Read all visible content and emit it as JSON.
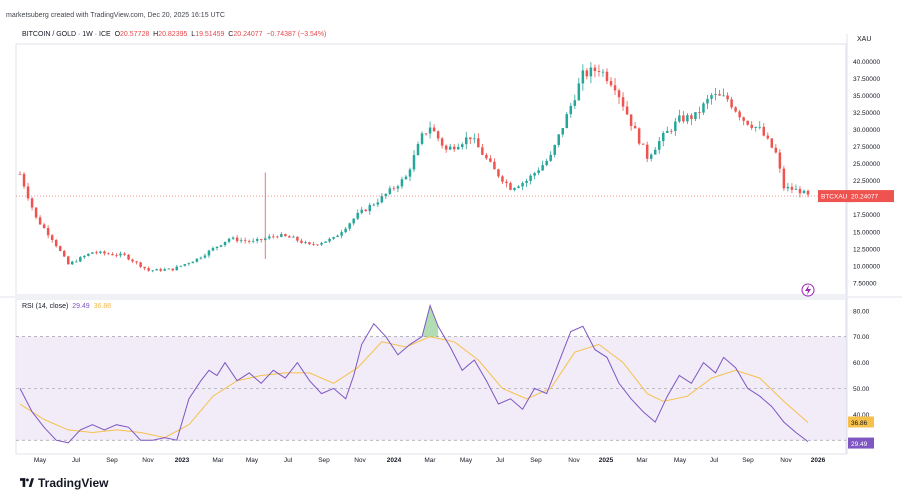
{
  "header": {
    "credit": "marketsuberg created with TradingView.com, Dec 20, 2025 16:15 UTC"
  },
  "legend": {
    "symbol": "BITCOIN / GOLD · 1W · ICE",
    "o_label": "O",
    "o_value": "20.57728",
    "h_label": "H",
    "h_value": "20.82395",
    "l_label": "L",
    "l_value": "19.51459",
    "c_label": "C",
    "c_value": "20.24077",
    "change": "−0.74387 (−3.54%)"
  },
  "axis_unit": "XAU",
  "price_label": {
    "ticker": "BTCXAU",
    "value": "20.24077"
  },
  "rsi_legend": {
    "name": "RSI (14, close)",
    "rsi_value": "29.49",
    "ma_value": "36.86"
  },
  "rsi_badges": {
    "ma": "36.86",
    "rsi": "29.49"
  },
  "footer": {
    "brand": "TradingView"
  },
  "colors": {
    "up": "#26a69a",
    "down": "#ef5350",
    "rsi": "#7e57c2",
    "rsi_ma": "#f6c04b",
    "band": "#ede7f6"
  },
  "chart_data": [
    {
      "type": "candlestick",
      "title": "BITCOIN / GOLD · 1W · ICE",
      "x_ticks": [
        "May",
        "Jul",
        "Sep",
        "Nov",
        "2023",
        "Mar",
        "May",
        "Jul",
        "Sep",
        "Nov",
        "2024",
        "Mar",
        "May",
        "Jul",
        "Sep",
        "Nov",
        "2025",
        "Mar",
        "May",
        "Jul",
        "Sep",
        "Nov",
        "2026"
      ],
      "y_ticks": [
        "40.00000",
        "37.50000",
        "35.00000",
        "32.50000",
        "30.00000",
        "27.50000",
        "25.00000",
        "22.50000",
        "20.00000",
        "17.50000",
        "15.00000",
        "12.50000",
        "10.00000",
        "7.50000"
      ],
      "ylim": [
        6.0,
        42.0
      ],
      "close_path": [
        [
          0,
          23.5
        ],
        [
          4,
          17.0
        ],
        [
          8,
          14.0
        ],
        [
          12,
          10.2
        ],
        [
          18,
          12.0
        ],
        [
          26,
          11.5
        ],
        [
          32,
          9.3
        ],
        [
          38,
          9.5
        ],
        [
          44,
          11.0
        ],
        [
          52,
          14.0
        ],
        [
          58,
          13.5
        ],
        [
          64,
          14.5
        ],
        [
          68,
          14.0
        ],
        [
          72,
          13.0
        ],
        [
          78,
          14.0
        ],
        [
          84,
          17.5
        ],
        [
          90,
          20.0
        ],
        [
          96,
          23.0
        ],
        [
          100,
          29.0
        ],
        [
          102,
          30.5
        ],
        [
          106,
          27.0
        ],
        [
          112,
          29.0
        ],
        [
          118,
          24.0
        ],
        [
          122,
          21.5
        ],
        [
          126,
          22.5
        ],
        [
          132,
          26.0
        ],
        [
          136,
          32.0
        ],
        [
          140,
          38.0
        ],
        [
          144,
          39.0
        ],
        [
          148,
          36.5
        ],
        [
          152,
          31.0
        ],
        [
          156,
          26.0
        ],
        [
          160,
          29.0
        ],
        [
          164,
          31.5
        ],
        [
          168,
          32.0
        ],
        [
          172,
          35.0
        ],
        [
          176,
          34.5
        ],
        [
          180,
          31.5
        ],
        [
          184,
          30.0
        ],
        [
          188,
          26.5
        ],
        [
          190,
          21.5
        ],
        [
          194,
          21.0
        ],
        [
          196,
          20.24
        ]
      ],
      "last": 20.24077
    },
    {
      "type": "line",
      "title": "RSI (14, close)",
      "y_ticks": [
        "80.00",
        "70.00",
        "60.00",
        "50.00",
        "40.00"
      ],
      "ylim": [
        27.0,
        83.0
      ],
      "band": [
        30,
        70
      ],
      "midline": 50,
      "series": [
        {
          "name": "RSI",
          "points": [
            [
              0,
              50
            ],
            [
              3,
              41
            ],
            [
              6,
              35
            ],
            [
              9,
              30
            ],
            [
              12,
              29
            ],
            [
              15,
              34
            ],
            [
              18,
              36
            ],
            [
              21,
              34
            ],
            [
              24,
              36
            ],
            [
              27,
              35
            ],
            [
              30,
              30
            ],
            [
              33,
              30
            ],
            [
              36,
              31
            ],
            [
              39,
              30
            ],
            [
              42,
              46
            ],
            [
              45,
              53
            ],
            [
              47,
              57
            ],
            [
              49,
              55
            ],
            [
              51,
              60
            ],
            [
              54,
              53
            ],
            [
              57,
              56
            ],
            [
              60,
              52
            ],
            [
              63,
              57
            ],
            [
              66,
              54
            ],
            [
              69,
              60
            ],
            [
              72,
              53
            ],
            [
              75,
              48
            ],
            [
              78,
              50
            ],
            [
              81,
              46
            ],
            [
              83,
              55
            ],
            [
              85,
              67
            ],
            [
              88,
              75
            ],
            [
              91,
              70
            ],
            [
              94,
              63
            ],
            [
              97,
              67
            ],
            [
              100,
              70
            ],
            [
              102,
              82
            ],
            [
              104,
              74
            ],
            [
              107,
              66
            ],
            [
              110,
              57
            ],
            [
              113,
              61
            ],
            [
              116,
              53
            ],
            [
              119,
              44
            ],
            [
              122,
              46
            ],
            [
              125,
              42
            ],
            [
              128,
              50
            ],
            [
              131,
              48
            ],
            [
              134,
              60
            ],
            [
              137,
              72
            ],
            [
              140,
              74
            ],
            [
              143,
              65
            ],
            [
              146,
              62
            ],
            [
              149,
              52
            ],
            [
              152,
              46
            ],
            [
              155,
              41
            ],
            [
              158,
              37
            ],
            [
              161,
              47
            ],
            [
              164,
              55
            ],
            [
              167,
              52
            ],
            [
              170,
              60
            ],
            [
              173,
              56
            ],
            [
              175,
              62
            ],
            [
              178,
              58
            ],
            [
              181,
              50
            ],
            [
              184,
              47
            ],
            [
              187,
              43
            ],
            [
              190,
              37
            ],
            [
              193,
              33
            ],
            [
              196,
              29.49
            ]
          ]
        },
        {
          "name": "MA",
          "points": [
            [
              0,
              44
            ],
            [
              6,
              38
            ],
            [
              12,
              34
            ],
            [
              18,
              33
            ],
            [
              24,
              34
            ],
            [
              30,
              33
            ],
            [
              36,
              31
            ],
            [
              42,
              36
            ],
            [
              48,
              47
            ],
            [
              54,
              53
            ],
            [
              60,
              55
            ],
            [
              66,
              56
            ],
            [
              72,
              56
            ],
            [
              78,
              52
            ],
            [
              84,
              58
            ],
            [
              90,
              68
            ],
            [
              96,
              66
            ],
            [
              102,
              70
            ],
            [
              108,
              68
            ],
            [
              114,
              61
            ],
            [
              120,
              50
            ],
            [
              126,
              46
            ],
            [
              132,
              50
            ],
            [
              138,
              64
            ],
            [
              144,
              67
            ],
            [
              150,
              60
            ],
            [
              156,
              48
            ],
            [
              160,
              45
            ],
            [
              166,
              47
            ],
            [
              172,
              54
            ],
            [
              178,
              57
            ],
            [
              184,
              54
            ],
            [
              190,
              45
            ],
            [
              196,
              36.86
            ]
          ]
        }
      ]
    }
  ]
}
